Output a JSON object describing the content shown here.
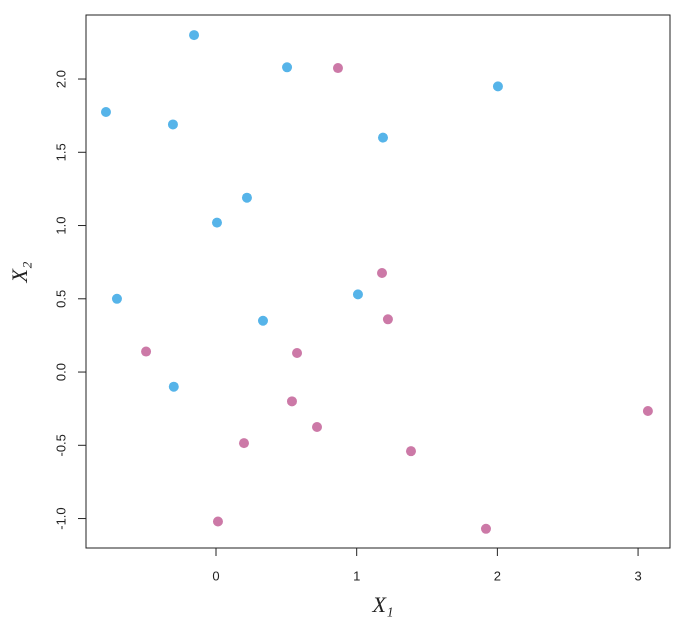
{
  "chart_data": {
    "type": "scatter",
    "x_label": "X₁",
    "y_label": "X₂",
    "xlim": [
      -0.924,
      3.227
    ],
    "ylim": [
      -1.201,
      2.437
    ],
    "xticks": [
      0,
      1,
      2,
      3
    ],
    "yticks": [
      {
        "value": -1,
        "label": "-1.0"
      },
      {
        "value": -0.5,
        "label": "-0.5"
      },
      {
        "value": 0,
        "label": "0.0"
      },
      {
        "value": 0.5,
        "label": "0.5"
      },
      {
        "value": 1,
        "label": "1.0"
      },
      {
        "value": 1.5,
        "label": "1.5"
      },
      {
        "value": 2,
        "label": "2.0"
      }
    ],
    "series": [
      {
        "color": "#56b4e9",
        "x": [
          -0.156,
          0.505,
          2.004,
          -0.782,
          -0.306,
          1.187,
          0.22,
          0.007,
          -0.704,
          1.009,
          0.334,
          -0.3
        ],
        "values": [
          2.3,
          2.08,
          1.95,
          1.775,
          1.69,
          1.6,
          1.19,
          1.02,
          0.5,
          0.53,
          0.35,
          -0.1
        ]
      },
      {
        "color": "#cc79a7",
        "x": [
          0.867,
          1.18,
          1.222,
          -0.497,
          0.576,
          0.54,
          0.718,
          0.199,
          1.386,
          3.07,
          0.014,
          1.919
        ],
        "values": [
          2.075,
          0.676,
          0.36,
          0.14,
          0.13,
          -0.2,
          -0.375,
          -0.485,
          -0.54,
          -0.266,
          -1.02,
          -1.07
        ]
      }
    ]
  }
}
